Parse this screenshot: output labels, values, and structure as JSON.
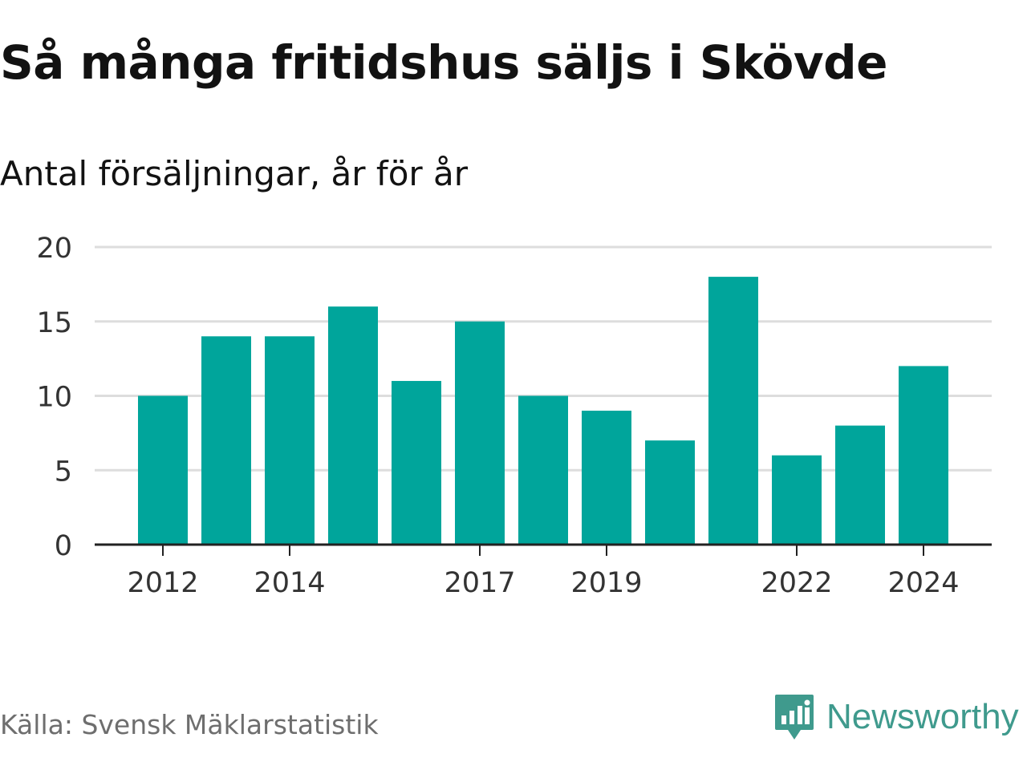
{
  "title": "Så många fritidshus säljs i Skövde",
  "subtitle": "Antal försäljningar, år för år",
  "source": "Källa: Svensk Mäklarstatistik",
  "brand": {
    "name": "Newsworthy",
    "icon": "newsworthy-logo-icon",
    "color": "#3f9a8d"
  },
  "colors": {
    "bar": "#00a59b",
    "grid": "#dddddd",
    "axis": "#222222",
    "tick_text": "#333333"
  },
  "chart_data": {
    "type": "bar",
    "categories": [
      "2012",
      "2013",
      "2014",
      "2015",
      "2016",
      "2017",
      "2018",
      "2019",
      "2020",
      "2021",
      "2022",
      "2023",
      "2024"
    ],
    "values": [
      10,
      14,
      14,
      16,
      11,
      15,
      10,
      9,
      7,
      18,
      6,
      8,
      12
    ],
    "x_tick_labels": [
      "2012",
      "2014",
      "2017",
      "2019",
      "2022",
      "2024"
    ],
    "y_ticks": [
      0,
      5,
      10,
      15,
      20
    ],
    "ylim": [
      0,
      20
    ],
    "title": "Så många fritidshus säljs i Skövde",
    "subtitle": "Antal försäljningar, år för år",
    "xlabel": "",
    "ylabel": "",
    "grid": true,
    "legend": "none"
  }
}
